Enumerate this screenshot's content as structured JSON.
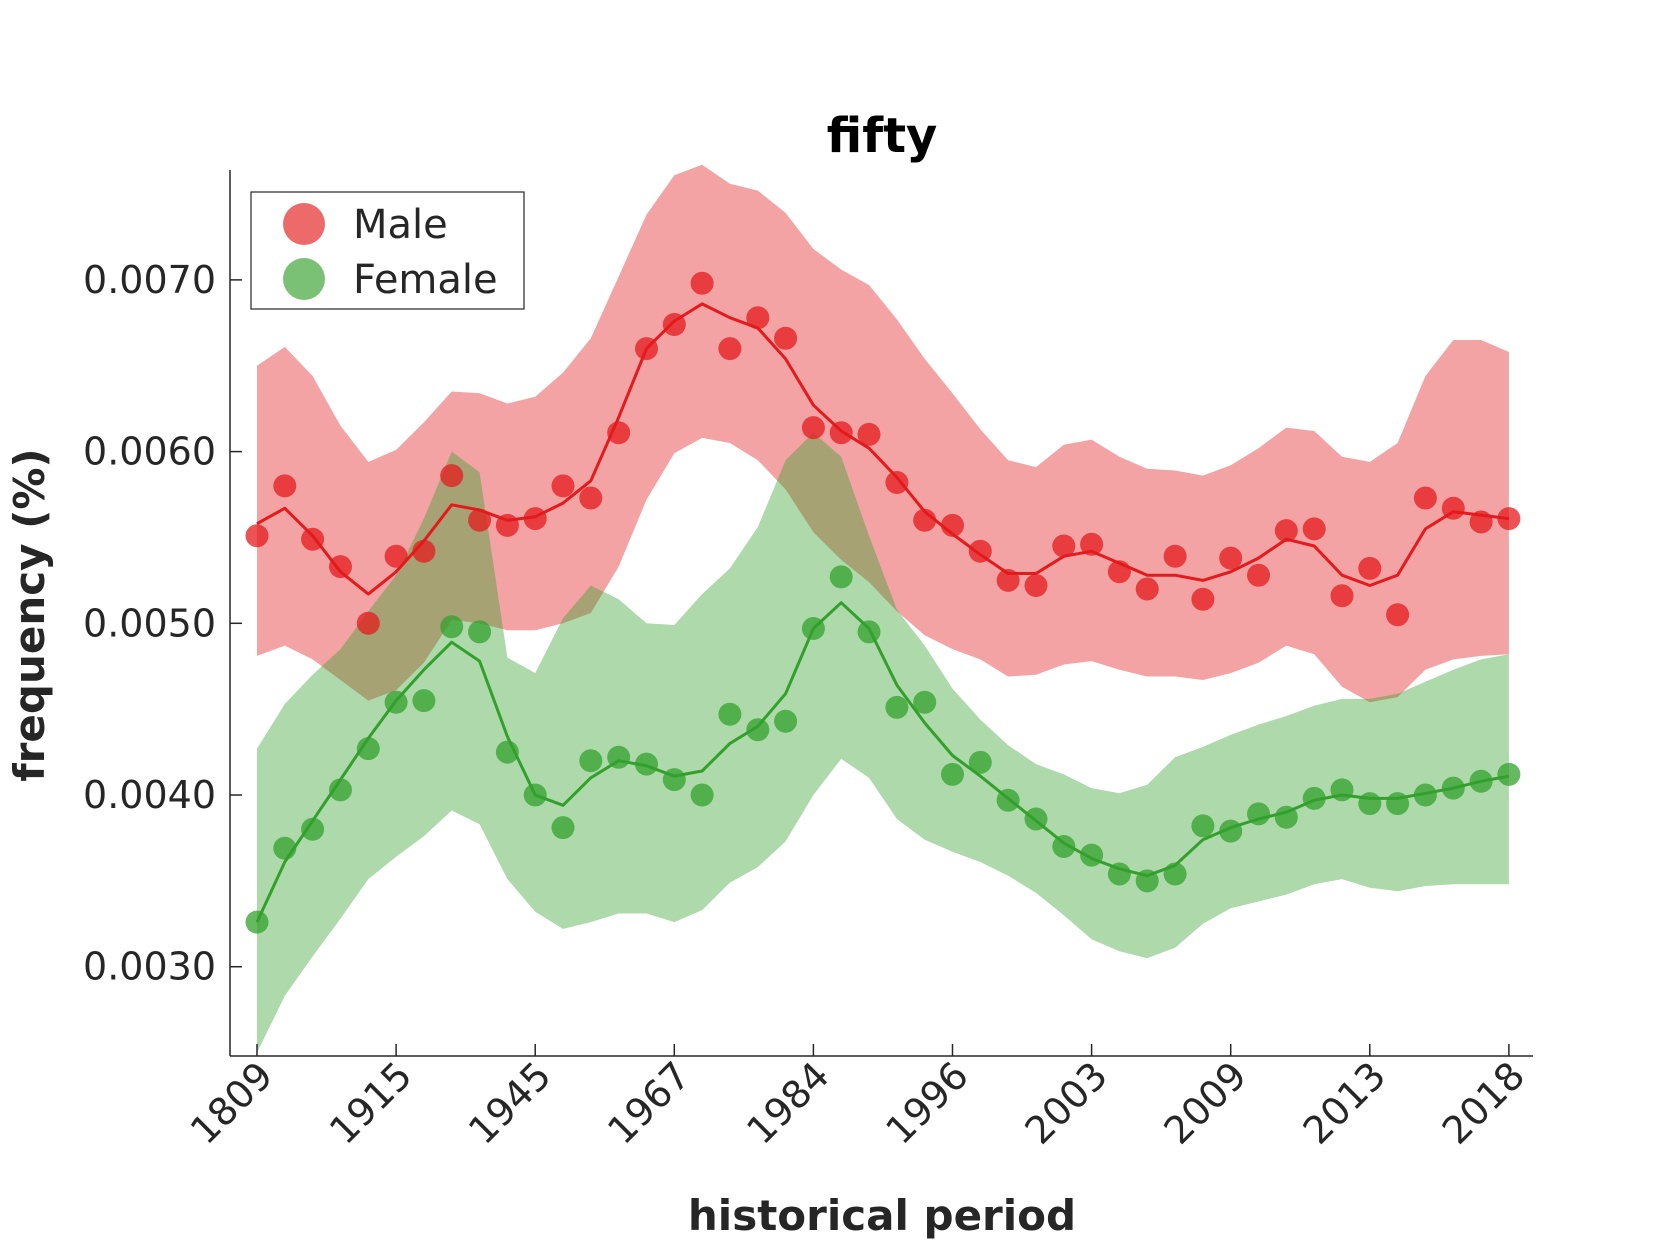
{
  "chart_data": {
    "type": "line",
    "title": "fifty",
    "xlabel": "historical period",
    "ylabel": "frequency (%)",
    "xtick_labels": [
      "1809",
      "1915",
      "1945",
      "1967",
      "1984",
      "1996",
      "2003",
      "2009",
      "2013",
      "2018"
    ],
    "ytick_labels": [
      "0.0030",
      "0.0040",
      "0.0050",
      "0.0060",
      "0.0070"
    ],
    "yticks": [
      0.003,
      0.004,
      0.005,
      0.006,
      0.007
    ],
    "ylim": [
      0.00248,
      0.00764
    ],
    "xlim": [
      -1,
      46
    ],
    "legend_position": "top-left",
    "colors": {
      "male": "#e41a1c",
      "female": "#33a02c",
      "male_band": "#f4a3a5",
      "female_band": "#aedba3"
    },
    "series": [
      {
        "name": "Male",
        "points": [
          0.00551,
          0.0058,
          0.00549,
          0.00533,
          0.005,
          0.00539,
          0.00542,
          0.00586,
          0.0056,
          0.00557,
          0.00561,
          0.0058,
          0.00573,
          0.00611,
          0.0066,
          0.00674,
          0.00698,
          0.0066,
          0.00678,
          0.00666,
          0.00614,
          0.00611,
          0.0061,
          0.00582,
          0.0056,
          0.00557,
          0.00542,
          0.00525,
          0.00522,
          0.00545,
          0.00546,
          0.0053,
          0.0052,
          0.00539,
          0.00514,
          0.00538,
          0.00528,
          0.00554,
          0.00555,
          0.00516,
          0.00532,
          0.00505,
          0.00573,
          0.00567,
          0.00559,
          0.00561
        ],
        "trend": [
          0.00558,
          0.00567,
          0.00551,
          0.0053,
          0.00517,
          0.0053,
          0.00548,
          0.00569,
          0.00566,
          0.0056,
          0.00562,
          0.0057,
          0.00583,
          0.0062,
          0.0066,
          0.00676,
          0.00686,
          0.00678,
          0.00672,
          0.00654,
          0.00627,
          0.00612,
          0.00602,
          0.00585,
          0.00565,
          0.00552,
          0.0054,
          0.00529,
          0.00529,
          0.00539,
          0.00542,
          0.00535,
          0.00528,
          0.00528,
          0.00525,
          0.0053,
          0.00538,
          0.00549,
          0.00545,
          0.00528,
          0.00522,
          0.00528,
          0.00555,
          0.00565,
          0.00563,
          0.00561
        ],
        "band_upper": [
          0.0065,
          0.00661,
          0.00644,
          0.00615,
          0.00594,
          0.00601,
          0.00617,
          0.00635,
          0.00634,
          0.00628,
          0.00632,
          0.00646,
          0.00666,
          0.00702,
          0.00738,
          0.00761,
          0.00767,
          0.00756,
          0.00752,
          0.00739,
          0.00718,
          0.00706,
          0.00697,
          0.00677,
          0.00654,
          0.00634,
          0.00613,
          0.00595,
          0.00591,
          0.00604,
          0.00607,
          0.00597,
          0.0059,
          0.00589,
          0.00586,
          0.00592,
          0.00602,
          0.00614,
          0.00612,
          0.00597,
          0.00594,
          0.00605,
          0.00644,
          0.00665,
          0.00665,
          0.00658
        ],
        "band_lower": [
          0.00481,
          0.00487,
          0.00479,
          0.00467,
          0.00455,
          0.00461,
          0.00477,
          0.00502,
          0.005,
          0.00496,
          0.00496,
          0.005,
          0.00506,
          0.00533,
          0.00572,
          0.00599,
          0.00608,
          0.00605,
          0.00595,
          0.00578,
          0.00553,
          0.00537,
          0.00524,
          0.00507,
          0.00493,
          0.00485,
          0.00479,
          0.00469,
          0.0047,
          0.00476,
          0.00478,
          0.00473,
          0.00469,
          0.00469,
          0.00467,
          0.00471,
          0.00477,
          0.00487,
          0.00482,
          0.00463,
          0.00454,
          0.00457,
          0.00473,
          0.00479,
          0.00481,
          0.00482
        ]
      },
      {
        "name": "Female",
        "points": [
          0.00326,
          0.00369,
          0.0038,
          0.00403,
          0.00427,
          0.00454,
          0.00455,
          0.00498,
          0.00495,
          0.00425,
          0.004,
          0.00381,
          0.0042,
          0.00422,
          0.00418,
          0.00409,
          0.004,
          0.00447,
          0.00438,
          0.00443,
          0.00497,
          0.00527,
          0.00495,
          0.00451,
          0.00454,
          0.00412,
          0.00419,
          0.00397,
          0.00386,
          0.0037,
          0.00365,
          0.00354,
          0.0035,
          0.00354,
          0.00382,
          0.00379,
          0.00389,
          0.00387,
          0.00398,
          0.00403,
          0.00395,
          0.00395,
          0.004,
          0.00404,
          0.00408,
          0.00412
        ],
        "trend": [
          0.00326,
          0.00361,
          0.00385,
          0.00409,
          0.00433,
          0.00455,
          0.00473,
          0.00489,
          0.00478,
          0.00434,
          0.004,
          0.00394,
          0.0041,
          0.0042,
          0.00417,
          0.00411,
          0.00414,
          0.0043,
          0.0044,
          0.00459,
          0.00497,
          0.00512,
          0.00497,
          0.00464,
          0.00442,
          0.00423,
          0.00411,
          0.00398,
          0.00385,
          0.00372,
          0.00363,
          0.00357,
          0.00353,
          0.00359,
          0.00374,
          0.00381,
          0.00386,
          0.0039,
          0.00397,
          0.004,
          0.00398,
          0.00398,
          0.00401,
          0.00404,
          0.00408,
          0.00411
        ],
        "band_upper": [
          0.00427,
          0.00453,
          0.0047,
          0.00485,
          0.00507,
          0.00528,
          0.00561,
          0.006,
          0.00588,
          0.0048,
          0.00471,
          0.00503,
          0.00522,
          0.00514,
          0.005,
          0.00499,
          0.00517,
          0.00532,
          0.00556,
          0.00595,
          0.00611,
          0.00597,
          0.00551,
          0.00508,
          0.00487,
          0.00462,
          0.00444,
          0.00429,
          0.00418,
          0.00412,
          0.00404,
          0.00401,
          0.00406,
          0.00422,
          0.00428,
          0.00435,
          0.00441,
          0.00446,
          0.00452,
          0.00456,
          0.00456,
          0.00459,
          0.00466,
          0.00473,
          0.00479,
          0.00482
        ],
        "band_lower": [
          0.0025,
          0.00283,
          0.00306,
          0.00328,
          0.00351,
          0.00364,
          0.00376,
          0.00391,
          0.00383,
          0.00351,
          0.00332,
          0.00322,
          0.00326,
          0.00331,
          0.00331,
          0.00326,
          0.00333,
          0.00349,
          0.00358,
          0.00373,
          0.004,
          0.00421,
          0.0041,
          0.00386,
          0.00374,
          0.00367,
          0.00361,
          0.00353,
          0.00343,
          0.0033,
          0.00316,
          0.00309,
          0.00305,
          0.00311,
          0.00325,
          0.00334,
          0.00338,
          0.00342,
          0.00348,
          0.00351,
          0.00346,
          0.00344,
          0.00347,
          0.00348,
          0.00348,
          0.00348
        ]
      }
    ]
  }
}
